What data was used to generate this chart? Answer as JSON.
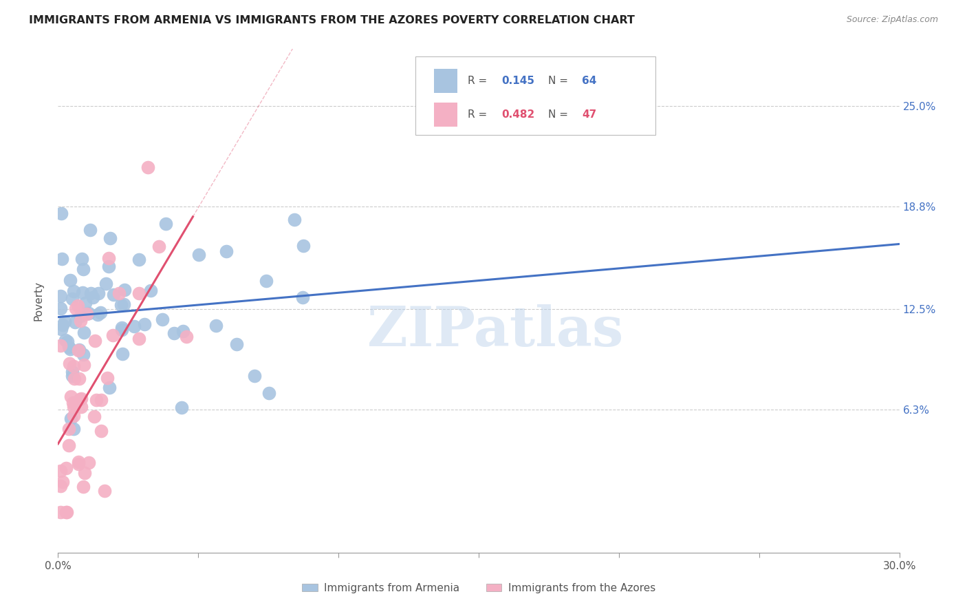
{
  "title": "IMMIGRANTS FROM ARMENIA VS IMMIGRANTS FROM THE AZORES POVERTY CORRELATION CHART",
  "source": "Source: ZipAtlas.com",
  "ylabel": "Poverty",
  "ytick_values": [
    0.063,
    0.125,
    0.188,
    0.25
  ],
  "ytick_labels": [
    "6.3%",
    "12.5%",
    "18.8%",
    "25.0%"
  ],
  "xlim": [
    0.0,
    0.3
  ],
  "ylim": [
    -0.025,
    0.285
  ],
  "armenia_color": "#a8c4e0",
  "azores_color": "#f4b0c4",
  "armenia_line_color": "#4472c4",
  "azores_line_color": "#e05070",
  "watermark": "ZIPatlas",
  "legend_line1_r": "0.145",
  "legend_line1_n": "64",
  "legend_line2_r": "0.482",
  "legend_line2_n": "47",
  "bottom_legend_armenia": "Immigrants from Armenia",
  "bottom_legend_azores": "Immigrants from the Azores",
  "armenia_seed": 42,
  "azores_seed": 7,
  "background_color": "#ffffff",
  "grid_color": "#cccccc",
  "tick_color": "#999999",
  "text_color": "#555555",
  "right_axis_color": "#4472c4"
}
